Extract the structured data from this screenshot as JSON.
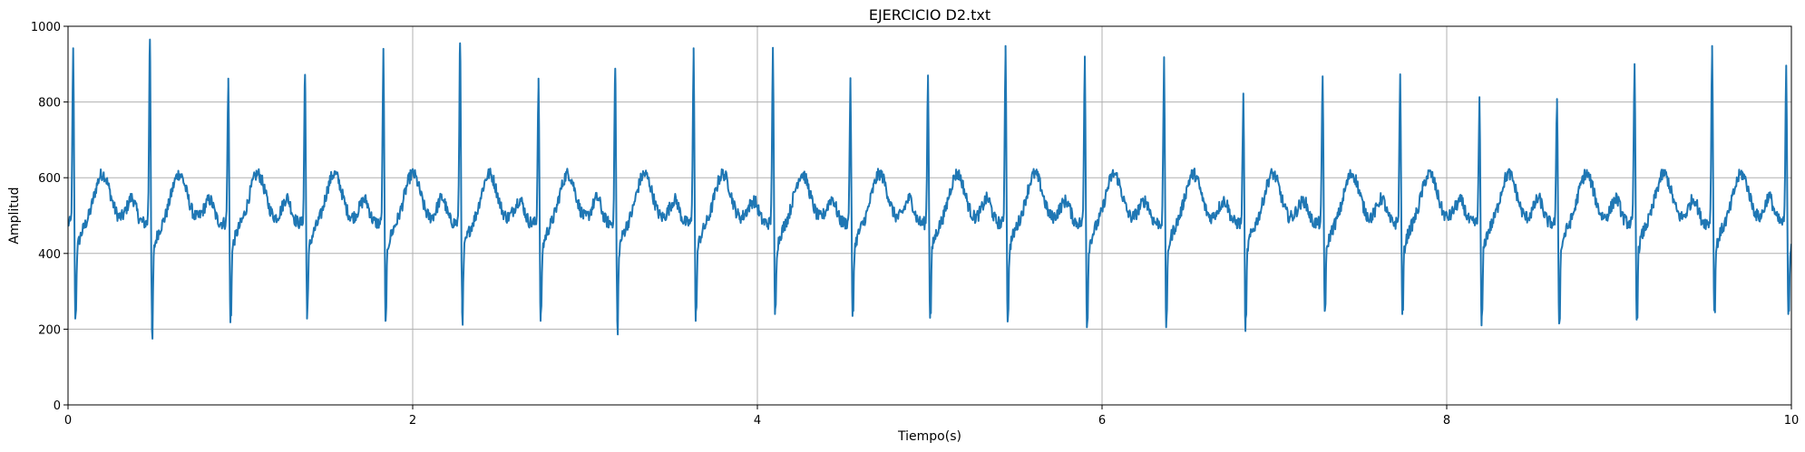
{
  "chart_data": {
    "type": "line",
    "title": "EJERCICIO D2.txt",
    "xlabel": "Tiempo(s)",
    "ylabel": "Amplitud",
    "xlim": [
      0,
      10
    ],
    "ylim": [
      0,
      1000
    ],
    "xticks": [
      0,
      2,
      4,
      6,
      8,
      10
    ],
    "xtick_labels": [
      "0",
      "2",
      "4",
      "6",
      "8",
      "10"
    ],
    "yticks": [
      0,
      200,
      400,
      600,
      800,
      1000
    ],
    "ytick_labels": [
      "0",
      "200",
      "400",
      "600",
      "800",
      "1000"
    ],
    "grid": true,
    "legend": "none",
    "line_color": "#1f77b4",
    "series": [
      {
        "beats": [
          {
            "t": 0.03,
            "peak": 938,
            "trough": 228
          },
          {
            "t": 0.475,
            "peak": 965,
            "trough": 200
          },
          {
            "t": 0.93,
            "peak": 862,
            "trough": 218
          },
          {
            "t": 1.375,
            "peak": 872,
            "trough": 228
          },
          {
            "t": 1.83,
            "peak": 934,
            "trough": 222
          },
          {
            "t": 2.275,
            "peak": 955,
            "trough": 245
          },
          {
            "t": 2.73,
            "peak": 862,
            "trough": 222
          },
          {
            "t": 3.175,
            "peak": 888,
            "trough": 224
          },
          {
            "t": 3.63,
            "peak": 942,
            "trough": 222
          },
          {
            "t": 4.09,
            "peak": 943,
            "trough": 240
          },
          {
            "t": 4.54,
            "peak": 853,
            "trough": 235
          },
          {
            "t": 4.99,
            "peak": 870,
            "trough": 230
          },
          {
            "t": 5.44,
            "peak": 948,
            "trough": 220
          },
          {
            "t": 5.9,
            "peak": 920,
            "trough": 205
          },
          {
            "t": 6.36,
            "peak": 910,
            "trough": 205
          },
          {
            "t": 6.82,
            "peak": 818,
            "trough": 195
          },
          {
            "t": 7.28,
            "peak": 868,
            "trough": 248
          },
          {
            "t": 7.73,
            "peak": 870,
            "trough": 240
          },
          {
            "t": 8.19,
            "peak": 808,
            "trough": 210
          },
          {
            "t": 8.64,
            "peak": 808,
            "trough": 215
          },
          {
            "t": 9.09,
            "peak": 900,
            "trough": 225
          },
          {
            "t": 9.54,
            "peak": 948,
            "trough": 250
          },
          {
            "t": 9.97,
            "peak": 888,
            "trough": 240
          }
        ],
        "baseline": 480,
        "t_wave_peak": 610
      }
    ]
  }
}
